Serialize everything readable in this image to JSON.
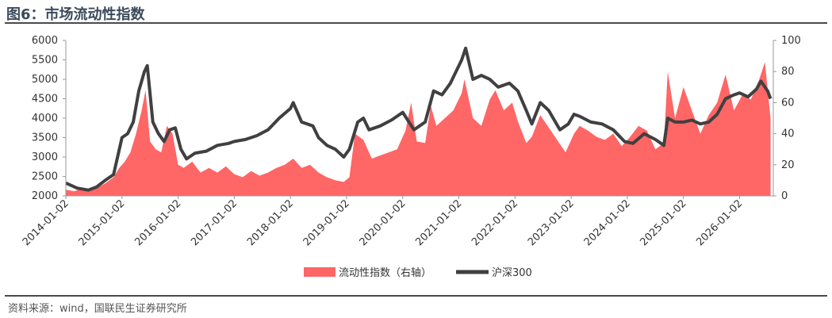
{
  "title": "图6：市场流动性指数",
  "source": "资料来源：wind，国联民生证券研究所",
  "chart_data": {
    "type": "area+line",
    "legend": [
      {
        "name": "流动性指数（右轴）",
        "type": "area",
        "color": "#ff6666"
      },
      {
        "name": "沪深300",
        "type": "line",
        "color": "#404040"
      }
    ],
    "x_ticks": [
      "2014-01-02",
      "2015-01-02",
      "2016-01-02",
      "2017-01-02",
      "2018-01-02",
      "2019-01-02",
      "2020-01-02",
      "2021-01-02",
      "2022-01-02",
      "2023-01-02",
      "2024-01-02",
      "2025-01-02",
      "2026-01-02"
    ],
    "y_left": {
      "min": 2000,
      "max": 6000,
      "ticks": [
        2000,
        2500,
        3000,
        3500,
        4000,
        4500,
        5000,
        5500,
        6000
      ]
    },
    "y_right": {
      "min": 0,
      "max": 100,
      "ticks": [
        0,
        20,
        40,
        60,
        80,
        100
      ]
    },
    "x_range": [
      2014.0,
      2026.6
    ],
    "csi300": [
      [
        2014.0,
        2330
      ],
      [
        2014.2,
        2200
      ],
      [
        2014.4,
        2150
      ],
      [
        2014.55,
        2230
      ],
      [
        2014.7,
        2400
      ],
      [
        2014.85,
        2550
      ],
      [
        2015.0,
        3500
      ],
      [
        2015.1,
        3600
      ],
      [
        2015.2,
        3900
      ],
      [
        2015.3,
        4700
      ],
      [
        2015.4,
        5200
      ],
      [
        2015.45,
        5350
      ],
      [
        2015.55,
        3900
      ],
      [
        2015.65,
        3600
      ],
      [
        2015.75,
        3400
      ],
      [
        2015.85,
        3700
      ],
      [
        2015.95,
        3750
      ],
      [
        2016.05,
        3200
      ],
      [
        2016.15,
        2950
      ],
      [
        2016.3,
        3100
      ],
      [
        2016.5,
        3150
      ],
      [
        2016.7,
        3300
      ],
      [
        2016.9,
        3350
      ],
      [
        2017.0,
        3400
      ],
      [
        2017.2,
        3450
      ],
      [
        2017.4,
        3550
      ],
      [
        2017.6,
        3700
      ],
      [
        2017.8,
        4000
      ],
      [
        2018.0,
        4250
      ],
      [
        2018.05,
        4400
      ],
      [
        2018.2,
        3900
      ],
      [
        2018.4,
        3800
      ],
      [
        2018.5,
        3500
      ],
      [
        2018.65,
        3300
      ],
      [
        2018.8,
        3200
      ],
      [
        2018.95,
        3000
      ],
      [
        2019.05,
        3200
      ],
      [
        2019.2,
        3900
      ],
      [
        2019.3,
        4000
      ],
      [
        2019.4,
        3700
      ],
      [
        2019.6,
        3800
      ],
      [
        2019.8,
        3950
      ],
      [
        2020.0,
        4150
      ],
      [
        2020.2,
        3700
      ],
      [
        2020.4,
        3900
      ],
      [
        2020.55,
        4700
      ],
      [
        2020.7,
        4600
      ],
      [
        2020.85,
        4900
      ],
      [
        2021.05,
        5500
      ],
      [
        2021.12,
        5800
      ],
      [
        2021.25,
        5000
      ],
      [
        2021.4,
        5100
      ],
      [
        2021.55,
        5000
      ],
      [
        2021.7,
        4800
      ],
      [
        2021.9,
        4900
      ],
      [
        2022.05,
        4700
      ],
      [
        2022.2,
        4200
      ],
      [
        2022.3,
        3850
      ],
      [
        2022.45,
        4400
      ],
      [
        2022.6,
        4200
      ],
      [
        2022.8,
        3700
      ],
      [
        2022.95,
        3850
      ],
      [
        2023.05,
        4100
      ],
      [
        2023.15,
        4050
      ],
      [
        2023.35,
        3900
      ],
      [
        2023.55,
        3850
      ],
      [
        2023.75,
        3700
      ],
      [
        2023.95,
        3400
      ],
      [
        2024.1,
        3350
      ],
      [
        2024.3,
        3600
      ],
      [
        2024.5,
        3450
      ],
      [
        2024.65,
        3300
      ],
      [
        2024.72,
        4000
      ],
      [
        2024.85,
        3900
      ],
      [
        2025.0,
        3900
      ],
      [
        2025.15,
        3950
      ],
      [
        2025.3,
        3850
      ],
      [
        2025.45,
        3900
      ],
      [
        2025.6,
        4100
      ],
      [
        2025.75,
        4500
      ],
      [
        2025.9,
        4600
      ],
      [
        2026.0,
        4650
      ],
      [
        2026.15,
        4550
      ],
      [
        2026.3,
        4750
      ],
      [
        2026.38,
        4950
      ],
      [
        2026.5,
        4700
      ],
      [
        2026.55,
        4500
      ]
    ],
    "liquidity": [
      [
        2014.0,
        4
      ],
      [
        2014.15,
        3
      ],
      [
        2014.3,
        5
      ],
      [
        2014.5,
        4
      ],
      [
        2014.7,
        8
      ],
      [
        2014.85,
        12
      ],
      [
        2014.95,
        18
      ],
      [
        2015.05,
        22
      ],
      [
        2015.15,
        28
      ],
      [
        2015.25,
        40
      ],
      [
        2015.35,
        55
      ],
      [
        2015.42,
        68
      ],
      [
        2015.5,
        35
      ],
      [
        2015.6,
        30
      ],
      [
        2015.7,
        28
      ],
      [
        2015.8,
        45
      ],
      [
        2015.9,
        40
      ],
      [
        2016.0,
        20
      ],
      [
        2016.1,
        18
      ],
      [
        2016.25,
        22
      ],
      [
        2016.4,
        15
      ],
      [
        2016.55,
        18
      ],
      [
        2016.7,
        15
      ],
      [
        2016.85,
        19
      ],
      [
        2017.0,
        14
      ],
      [
        2017.15,
        12
      ],
      [
        2017.3,
        16
      ],
      [
        2017.45,
        13
      ],
      [
        2017.6,
        15
      ],
      [
        2017.75,
        18
      ],
      [
        2017.9,
        20
      ],
      [
        2018.05,
        24
      ],
      [
        2018.2,
        18
      ],
      [
        2018.35,
        20
      ],
      [
        2018.5,
        15
      ],
      [
        2018.65,
        12
      ],
      [
        2018.8,
        10
      ],
      [
        2018.95,
        9
      ],
      [
        2019.05,
        12
      ],
      [
        2019.15,
        40
      ],
      [
        2019.3,
        36
      ],
      [
        2019.45,
        24
      ],
      [
        2019.6,
        26
      ],
      [
        2019.75,
        28
      ],
      [
        2019.9,
        30
      ],
      [
        2020.05,
        42
      ],
      [
        2020.15,
        60
      ],
      [
        2020.25,
        35
      ],
      [
        2020.4,
        34
      ],
      [
        2020.5,
        58
      ],
      [
        2020.6,
        45
      ],
      [
        2020.75,
        50
      ],
      [
        2020.9,
        55
      ],
      [
        2021.05,
        66
      ],
      [
        2021.1,
        75
      ],
      [
        2021.25,
        50
      ],
      [
        2021.4,
        45
      ],
      [
        2021.55,
        62
      ],
      [
        2021.65,
        68
      ],
      [
        2021.8,
        55
      ],
      [
        2021.95,
        60
      ],
      [
        2022.05,
        48
      ],
      [
        2022.2,
        34
      ],
      [
        2022.3,
        38
      ],
      [
        2022.45,
        52
      ],
      [
        2022.6,
        44
      ],
      [
        2022.75,
        36
      ],
      [
        2022.9,
        28
      ],
      [
        2023.05,
        40
      ],
      [
        2023.15,
        45
      ],
      [
        2023.3,
        42
      ],
      [
        2023.45,
        38
      ],
      [
        2023.6,
        36
      ],
      [
        2023.75,
        40
      ],
      [
        2023.9,
        32
      ],
      [
        2024.05,
        38
      ],
      [
        2024.2,
        45
      ],
      [
        2024.35,
        42
      ],
      [
        2024.5,
        30
      ],
      [
        2024.65,
        34
      ],
      [
        2024.72,
        80
      ],
      [
        2024.85,
        50
      ],
      [
        2025.0,
        70
      ],
      [
        2025.15,
        55
      ],
      [
        2025.3,
        40
      ],
      [
        2025.45,
        52
      ],
      [
        2025.6,
        60
      ],
      [
        2025.75,
        78
      ],
      [
        2025.9,
        55
      ],
      [
        2026.05,
        65
      ],
      [
        2026.2,
        62
      ],
      [
        2026.35,
        75
      ],
      [
        2026.45,
        86
      ],
      [
        2026.55,
        50
      ]
    ]
  }
}
